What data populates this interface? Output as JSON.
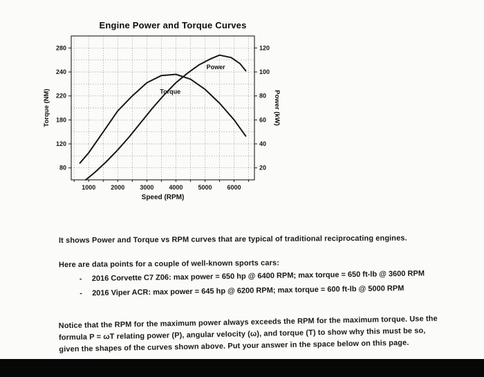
{
  "page": {
    "title": "Engine Power and Torque Curves"
  },
  "chart_data": {
    "type": "line",
    "title": "Engine Power and Torque Curves",
    "xlabel": "Speed (RPM)",
    "ylabel_left": "Torque (NM)",
    "ylabel_right": "Power (kW)",
    "x_ticks": [
      "1000",
      "2000",
      "3000",
      "4000",
      "5000",
      "6000"
    ],
    "x_tick_values": [
      1000,
      2000,
      3000,
      4000,
      5000,
      6000
    ],
    "y_ticks_left": [
      "280",
      "240",
      "220",
      "180",
      "120",
      "80"
    ],
    "y_ticks_right": [
      "120",
      "100",
      "80",
      "60",
      "40",
      "20"
    ],
    "xlim": [
      400,
      6700
    ],
    "ylim_left": [
      60,
      300
    ],
    "ylim_right": [
      10,
      130
    ],
    "grid": true,
    "grid_x_step": 500,
    "legend_position": "inline-labels",
    "series": [
      {
        "name": "Torque",
        "axis": "left",
        "x": [
          700,
          1000,
          1500,
          2000,
          2500,
          3000,
          3500,
          4000,
          4500,
          5000,
          5500,
          6000,
          6400
        ],
        "y": [
          88,
          105,
          140,
          175,
          200,
          222,
          234,
          236,
          228,
          211,
          188,
          160,
          133
        ],
        "label_at": {
          "x": 3450,
          "y": 207
        }
      },
      {
        "name": "Power",
        "axis": "right",
        "x": [
          900,
          1200,
          1600,
          2000,
          2400,
          2800,
          3200,
          3600,
          4000,
          4400,
          4800,
          5200,
          5500,
          5900,
          6200,
          6400
        ],
        "y": [
          10,
          16,
          25,
          35,
          46,
          58,
          70,
          81,
          91,
          99,
          106,
          111,
          114,
          112,
          107,
          101
        ],
        "label_at": {
          "x": 5050,
          "y": 104
        }
      }
    ]
  },
  "body": {
    "para1": "It shows Power and Torque vs RPM curves that are typical of traditional reciprocating engines.",
    "para2": "Here are data points for a couple of well-known sports cars:",
    "bullets": [
      {
        "marker": "-",
        "text": "2016 Corvette C7 Z06: max power = 650 hp @ 6400 RPM; max torque = 650 ft-lb @ 3600 RPM"
      },
      {
        "marker": "-",
        "text": "2016 Viper ACR: max power = 645 hp @ 6200 RPM; max torque = 600 ft-lb @ 5000 RPM"
      }
    ],
    "para3": "Notice that the RPM for the maximum power always exceeds the RPM for the maximum torque. Use the formula P = ωT relating power (P), angular velocity (ω), and torque (T) to show why this must be so, given the shapes of the curves shown above. Put your answer in the space below on this page."
  },
  "colors": {
    "curve": "#181818",
    "grid": "#8f8f8f",
    "axis": "#1c1c1c",
    "scan_bar": "#070707"
  }
}
